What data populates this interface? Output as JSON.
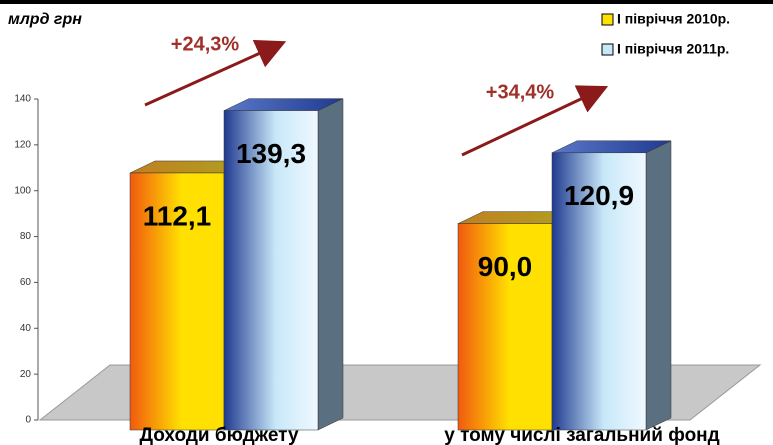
{
  "chart_data": {
    "type": "bar3d",
    "y_label": "млрд грн",
    "categories": [
      "Доходи бюджету",
      "у тому числі загальний фонд"
    ],
    "series": [
      {
        "name": "І півріччя 2010р.",
        "color": "#ffe000",
        "values": [
          112.1,
          90.0
        ],
        "value_labels": [
          "112,1",
          "90,0"
        ]
      },
      {
        "name": "І півріччя 2011р.",
        "color": "#c8e8f8",
        "values": [
          139.3,
          120.9
        ],
        "value_labels": [
          "139,3",
          "120,9"
        ]
      }
    ],
    "annotations": [
      "+24,3%",
      "+34,4%"
    ],
    "ylim": [
      0,
      140
    ],
    "yticks": [
      0,
      20,
      40,
      60,
      80,
      100,
      120,
      140
    ],
    "legend": "upper right"
  }
}
